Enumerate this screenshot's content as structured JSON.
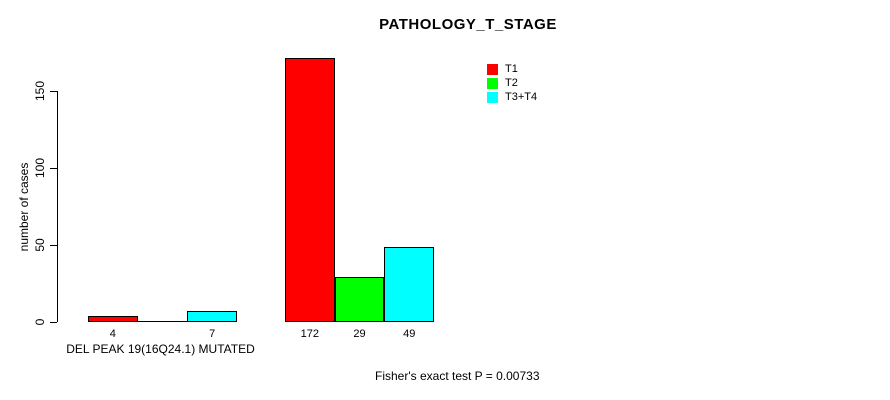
{
  "chart_data": {
    "type": "bar",
    "title": "PATHOLOGY_T_STAGE",
    "ylabel": "number of cases",
    "xlabel": "DEL PEAK 19(16Q24.1) MUTATED",
    "yticks": [
      0,
      50,
      100,
      150
    ],
    "ylim": [
      0,
      172
    ],
    "grid": false,
    "legend_position": "top-right",
    "series": [
      {
        "name": "T1",
        "color": "#FF0000"
      },
      {
        "name": "T2",
        "color": "#00FF00"
      },
      {
        "name": "T3+T4",
        "color": "#00FFFF"
      }
    ],
    "groups": [
      {
        "label": "DEL PEAK 19(16Q24.1) MUTATED",
        "values": [
          4,
          0,
          7
        ],
        "bar_labels": [
          "4",
          "",
          "7"
        ]
      },
      {
        "label": "",
        "values": [
          172,
          29,
          49
        ],
        "bar_labels": [
          "172",
          "29",
          "49"
        ]
      }
    ],
    "annotation": "Fisher's exact test P = 0.00733"
  },
  "colors": {
    "bar_border": "#000000",
    "axis": "#000000",
    "background": "#FFFFFF"
  }
}
